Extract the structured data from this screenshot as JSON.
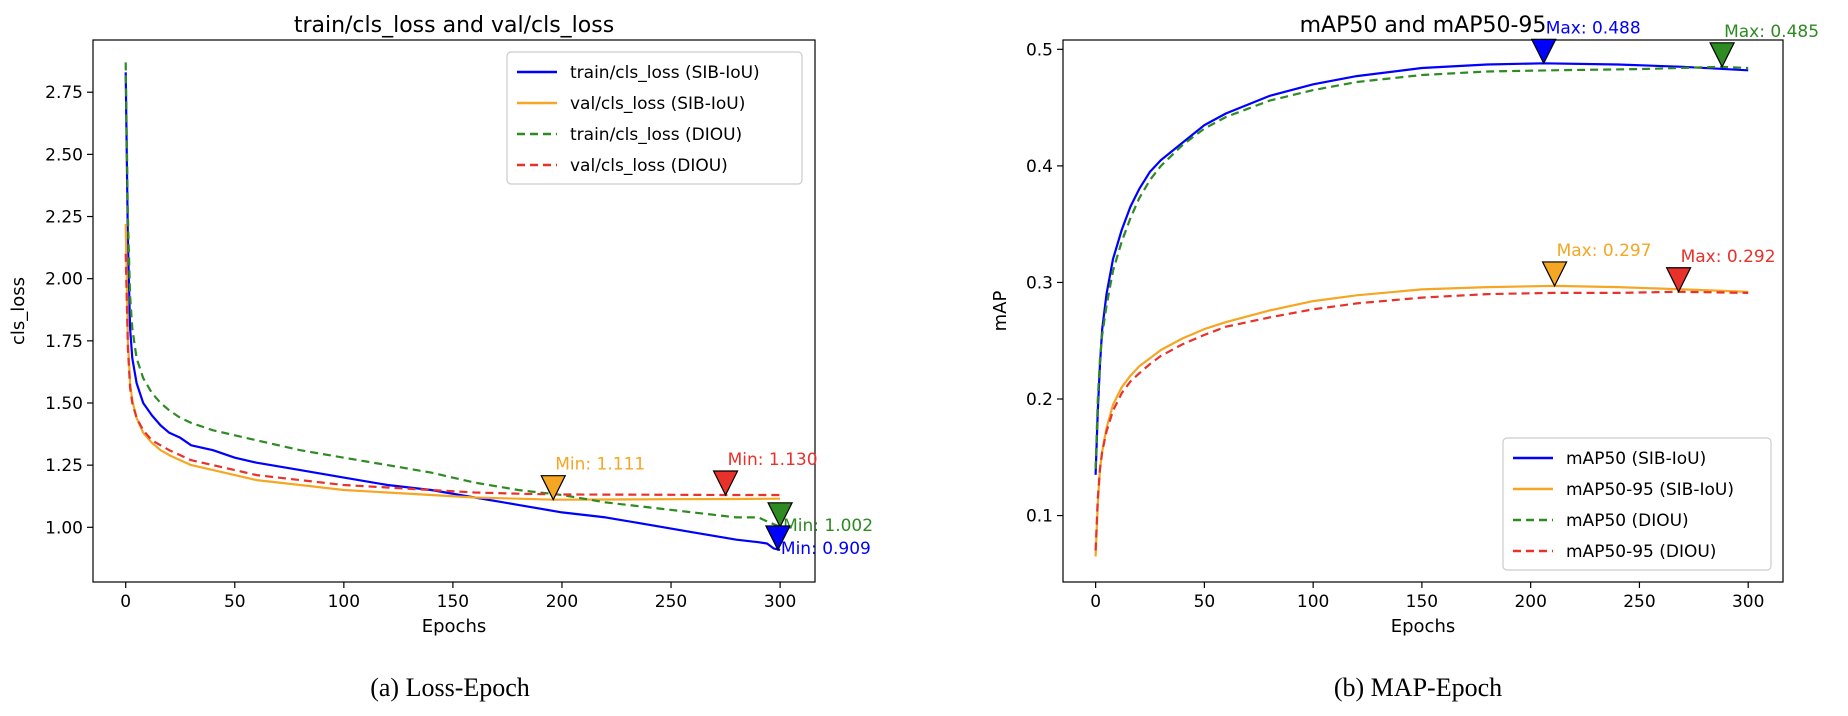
{
  "chart_data": [
    {
      "type": "line",
      "title": "train/cls_loss and val/cls_loss",
      "xlabel": "Epochs",
      "ylabel": "cls_loss",
      "xlim": [
        -15,
        316
      ],
      "ylim": [
        0.78,
        2.96
      ],
      "xticks": [
        0,
        50,
        100,
        150,
        200,
        250,
        300
      ],
      "yticks": [
        1.0,
        1.25,
        1.5,
        1.75,
        2.0,
        2.25,
        2.5,
        2.75
      ],
      "ytick_labels": [
        "1.00",
        "1.25",
        "1.50",
        "1.75",
        "2.00",
        "2.25",
        "2.50",
        "2.75"
      ],
      "grid": false,
      "legend_position": "top-right",
      "caption": "(a) Loss-Epoch",
      "series": [
        {
          "name": "train/cls_loss (SIB-IoU)",
          "color": "#0000ff",
          "dash": "solid",
          "x": [
            0,
            1,
            2,
            3,
            5,
            8,
            12,
            16,
            20,
            25,
            30,
            40,
            50,
            60,
            80,
            100,
            120,
            140,
            160,
            180,
            200,
            220,
            240,
            260,
            280,
            290,
            294,
            297,
            300
          ],
          "y": [
            2.83,
            2.15,
            1.8,
            1.68,
            1.58,
            1.5,
            1.45,
            1.41,
            1.38,
            1.36,
            1.33,
            1.31,
            1.28,
            1.26,
            1.23,
            1.2,
            1.17,
            1.15,
            1.12,
            1.09,
            1.06,
            1.04,
            1.01,
            0.98,
            0.95,
            0.94,
            0.935,
            0.915,
            0.909
          ]
        },
        {
          "name": "val/cls_loss (SIB-IoU)",
          "color": "#f5a623",
          "dash": "solid",
          "x": [
            0,
            1,
            2,
            3,
            5,
            8,
            12,
            16,
            20,
            25,
            30,
            40,
            50,
            60,
            80,
            100,
            120,
            140,
            160,
            180,
            196,
            220,
            250,
            280,
            300
          ],
          "y": [
            2.22,
            1.75,
            1.58,
            1.51,
            1.44,
            1.38,
            1.34,
            1.31,
            1.29,
            1.27,
            1.25,
            1.23,
            1.21,
            1.19,
            1.17,
            1.15,
            1.14,
            1.13,
            1.12,
            1.115,
            1.111,
            1.112,
            1.113,
            1.114,
            1.115
          ]
        },
        {
          "name": "train/cls_loss (DIOU)",
          "color": "#2e8b22",
          "dash": "dashed",
          "x": [
            0,
            1,
            2,
            3,
            5,
            8,
            12,
            16,
            20,
            25,
            30,
            40,
            50,
            60,
            80,
            100,
            120,
            140,
            160,
            180,
            200,
            220,
            240,
            260,
            280,
            290,
            295,
            300
          ],
          "y": [
            2.87,
            2.25,
            1.93,
            1.8,
            1.68,
            1.6,
            1.54,
            1.5,
            1.47,
            1.44,
            1.42,
            1.39,
            1.37,
            1.35,
            1.31,
            1.28,
            1.25,
            1.22,
            1.18,
            1.15,
            1.13,
            1.1,
            1.08,
            1.06,
            1.04,
            1.04,
            1.02,
            1.002
          ]
        },
        {
          "name": "val/cls_loss (DIOU)",
          "color": "#e8312a",
          "dash": "dashed",
          "x": [
            0,
            1,
            2,
            3,
            5,
            8,
            12,
            16,
            20,
            25,
            30,
            40,
            50,
            60,
            80,
            100,
            120,
            140,
            160,
            180,
            200,
            240,
            275,
            300
          ],
          "y": [
            2.1,
            1.72,
            1.56,
            1.5,
            1.44,
            1.39,
            1.35,
            1.33,
            1.31,
            1.29,
            1.27,
            1.25,
            1.23,
            1.21,
            1.19,
            1.17,
            1.16,
            1.15,
            1.14,
            1.135,
            1.132,
            1.131,
            1.13,
            1.13
          ]
        }
      ],
      "annotations": [
        {
          "text": "Min: 1.111",
          "x": 196,
          "y": 1.111,
          "color": "#f5a623",
          "label_side": "above"
        },
        {
          "text": "Min: 1.130",
          "x": 275,
          "y": 1.13,
          "color": "#e8312a",
          "label_side": "above"
        },
        {
          "text": "Min: 1.002",
          "x": 300,
          "y": 1.002,
          "color": "#2e8b22",
          "label_side": "right"
        },
        {
          "text": "Min: 0.909",
          "x": 299,
          "y": 0.909,
          "color": "#0000ff",
          "label_side": "right"
        }
      ]
    },
    {
      "type": "line",
      "title": "mAP50 and mAP50-95",
      "xlabel": "Epochs",
      "ylabel": "mAP",
      "xlim": [
        -15,
        316
      ],
      "ylim": [
        0.043,
        0.508
      ],
      "xticks": [
        0,
        50,
        100,
        150,
        200,
        250,
        300
      ],
      "yticks": [
        0.1,
        0.2,
        0.3,
        0.4,
        0.5
      ],
      "ytick_labels": [
        "0.1",
        "0.2",
        "0.3",
        "0.4",
        "0.5"
      ],
      "grid": false,
      "legend_position": "bottom-right",
      "caption": "(b) MAP-Epoch",
      "series": [
        {
          "name": "mAP50 (SIB-IoU)",
          "color": "#0000ff",
          "dash": "solid",
          "x": [
            0,
            1,
            2,
            3,
            5,
            8,
            12,
            16,
            20,
            25,
            30,
            40,
            50,
            60,
            80,
            100,
            120,
            150,
            180,
            206,
            240,
            270,
            300
          ],
          "y": [
            0.135,
            0.19,
            0.23,
            0.26,
            0.29,
            0.32,
            0.345,
            0.365,
            0.38,
            0.395,
            0.405,
            0.42,
            0.435,
            0.445,
            0.46,
            0.47,
            0.477,
            0.484,
            0.487,
            0.488,
            0.487,
            0.485,
            0.482
          ]
        },
        {
          "name": "mAP50-95 (SIB-IoU)",
          "color": "#f5a623",
          "dash": "solid",
          "x": [
            0,
            1,
            2,
            3,
            5,
            8,
            12,
            16,
            20,
            25,
            30,
            40,
            50,
            60,
            80,
            100,
            120,
            150,
            180,
            211,
            240,
            270,
            300
          ],
          "y": [
            0.065,
            0.11,
            0.14,
            0.155,
            0.175,
            0.195,
            0.21,
            0.22,
            0.228,
            0.235,
            0.242,
            0.252,
            0.26,
            0.266,
            0.276,
            0.284,
            0.289,
            0.294,
            0.296,
            0.297,
            0.296,
            0.294,
            0.292
          ]
        },
        {
          "name": "mAP50 (DIOU)",
          "color": "#2e8b22",
          "dash": "dashed",
          "x": [
            0,
            1,
            2,
            3,
            5,
            8,
            12,
            16,
            20,
            25,
            30,
            40,
            50,
            60,
            80,
            100,
            120,
            150,
            180,
            210,
            250,
            288,
            300
          ],
          "y": [
            0.14,
            0.2,
            0.235,
            0.255,
            0.28,
            0.31,
            0.335,
            0.355,
            0.372,
            0.388,
            0.4,
            0.418,
            0.432,
            0.442,
            0.456,
            0.465,
            0.472,
            0.478,
            0.481,
            0.482,
            0.483,
            0.485,
            0.484
          ]
        },
        {
          "name": "mAP50-95 (DIOU)",
          "color": "#e8312a",
          "dash": "dashed",
          "x": [
            0,
            1,
            2,
            3,
            5,
            8,
            12,
            16,
            20,
            25,
            30,
            40,
            50,
            60,
            80,
            100,
            120,
            150,
            180,
            210,
            240,
            268,
            300
          ],
          "y": [
            0.07,
            0.115,
            0.14,
            0.155,
            0.172,
            0.19,
            0.205,
            0.215,
            0.222,
            0.23,
            0.237,
            0.247,
            0.255,
            0.262,
            0.27,
            0.277,
            0.282,
            0.287,
            0.29,
            0.291,
            0.291,
            0.292,
            0.291
          ]
        }
      ],
      "annotations": [
        {
          "text": "Max: 0.488",
          "x": 206,
          "y": 0.488,
          "color": "#0000ff",
          "label_side": "above"
        },
        {
          "text": "Max: 0.485",
          "x": 288,
          "y": 0.485,
          "color": "#2e8b22",
          "label_side": "above"
        },
        {
          "text": "Max: 0.297",
          "x": 211,
          "y": 0.297,
          "color": "#f5a623",
          "label_side": "above"
        },
        {
          "text": "Max: 0.292",
          "x": 268,
          "y": 0.292,
          "color": "#e8312a",
          "label_side": "above"
        }
      ]
    }
  ]
}
